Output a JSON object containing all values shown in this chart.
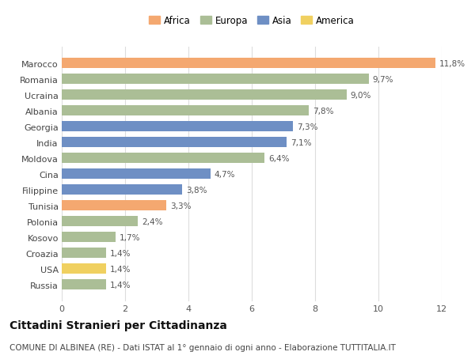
{
  "categories": [
    "Russia",
    "USA",
    "Croazia",
    "Kosovo",
    "Polonia",
    "Tunisia",
    "Filippine",
    "Cina",
    "Moldova",
    "India",
    "Georgia",
    "Albania",
    "Ucraina",
    "Romania",
    "Marocco"
  ],
  "values": [
    1.4,
    1.4,
    1.4,
    1.7,
    2.4,
    3.3,
    3.8,
    4.7,
    6.4,
    7.1,
    7.3,
    7.8,
    9.0,
    9.7,
    11.8
  ],
  "labels": [
    "1,4%",
    "1,4%",
    "1,4%",
    "1,7%",
    "2,4%",
    "3,3%",
    "3,8%",
    "4,7%",
    "6,4%",
    "7,1%",
    "7,3%",
    "7,8%",
    "9,0%",
    "9,7%",
    "11,8%"
  ],
  "continents": [
    "Europa",
    "America",
    "Europa",
    "Europa",
    "Europa",
    "Africa",
    "Asia",
    "Asia",
    "Europa",
    "Asia",
    "Asia",
    "Europa",
    "Europa",
    "Europa",
    "Africa"
  ],
  "colors": {
    "Africa": "#F4A870",
    "Europa": "#ABBE96",
    "Asia": "#6E8FC4",
    "America": "#F0D060"
  },
  "legend_order": [
    "Africa",
    "Europa",
    "Asia",
    "America"
  ],
  "title": "Cittadini Stranieri per Cittadinanza",
  "subtitle": "COMUNE DI ALBINEA (RE) - Dati ISTAT al 1° gennaio di ogni anno - Elaborazione TUTTITALIA.IT",
  "xlim": [
    0,
    12
  ],
  "xticks": [
    0,
    2,
    4,
    6,
    8,
    10,
    12
  ],
  "background_color": "#ffffff",
  "bar_height": 0.65,
  "title_fontsize": 10,
  "subtitle_fontsize": 7.5,
  "label_fontsize": 7.5,
  "ytick_fontsize": 8,
  "xtick_fontsize": 8,
  "legend_fontsize": 8.5
}
